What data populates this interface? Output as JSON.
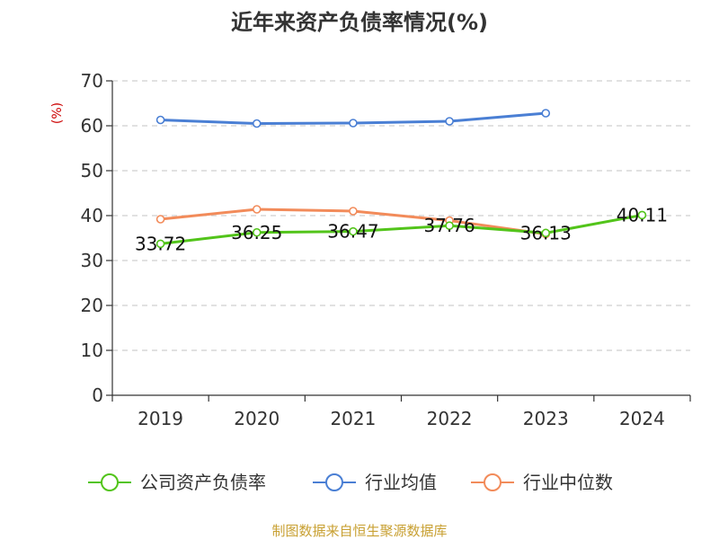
{
  "chart_data": {
    "type": "line",
    "title": "近年来资产负债率情况(%)",
    "ylabel": "(%)",
    "xlabel": "",
    "categories": [
      "2019",
      "2020",
      "2021",
      "2022",
      "2023",
      "2024"
    ],
    "ylim": [
      0,
      70
    ],
    "yticks": [
      0,
      10,
      20,
      30,
      40,
      50,
      60,
      70
    ],
    "grid": true,
    "legend_position": "bottom",
    "series": [
      {
        "name": "公司资产负债率",
        "color": "#52c41a",
        "values": [
          33.72,
          36.25,
          36.47,
          37.76,
          36.13,
          40.11
        ],
        "labels": [
          "33.72",
          "36.25",
          "36.47",
          "37.76",
          "36.13",
          "40.11"
        ]
      },
      {
        "name": "行业均值",
        "color": "#4a7fd4",
        "values": [
          61.3,
          60.5,
          60.6,
          61.0,
          62.8,
          null
        ]
      },
      {
        "name": "行业中位数",
        "color": "#f28b5a",
        "values": [
          39.2,
          41.4,
          41.0,
          38.9,
          35.9,
          null
        ]
      }
    ]
  },
  "source": "制图数据来自恒生聚源数据库"
}
